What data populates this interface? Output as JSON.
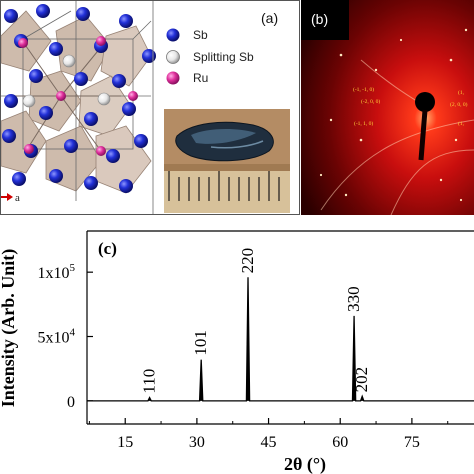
{
  "panel_a": {
    "label": "(a)",
    "axis_label": "a",
    "legend": [
      {
        "label": "Sb",
        "color": "#1a2bd6"
      },
      {
        "label": "Splitting Sb",
        "color": "#f2f2f2"
      },
      {
        "label": "Ru",
        "color": "#e0309c"
      }
    ]
  },
  "panel_b": {
    "label": "(b)",
    "spot_labels_left": [
      "(-1, -1, 0)",
      "(-2, 0, 0)",
      "(-1, 1, 0)"
    ],
    "spot_labels_right": [
      "(1,",
      "(2, 0, 0)",
      "(1,"
    ]
  },
  "panel_c": {
    "label": "(c)",
    "ylabel": "Intensity (Arb. Unit)",
    "xlabel": "2θ (°)",
    "xticks": [
      "15",
      "30",
      "45",
      "60",
      "75"
    ],
    "yticks": [
      "0",
      "5x10",
      "1x10"
    ],
    "ytick_exponents": [
      "",
      "4",
      "5"
    ],
    "peak_labels": [
      "110",
      "101",
      "220",
      "330",
      "202"
    ]
  },
  "chart_data": {
    "type": "line",
    "title": "",
    "xlabel": "2θ (°)",
    "ylabel": "Intensity (Arb. Unit)",
    "xlim": [
      7,
      88
    ],
    "ylim": [
      -18000,
      132000
    ],
    "xticks": [
      15,
      30,
      45,
      60,
      75
    ],
    "yticks": [
      0,
      50000,
      100000
    ],
    "peaks": [
      {
        "label": "110",
        "x": 20.1,
        "y": 2500
      },
      {
        "label": "101",
        "x": 30.9,
        "y": 32000
      },
      {
        "label": "220",
        "x": 40.7,
        "y": 96000
      },
      {
        "label": "330",
        "x": 62.9,
        "y": 66000
      },
      {
        "label": "202",
        "x": 64.6,
        "y": 3500
      }
    ]
  }
}
